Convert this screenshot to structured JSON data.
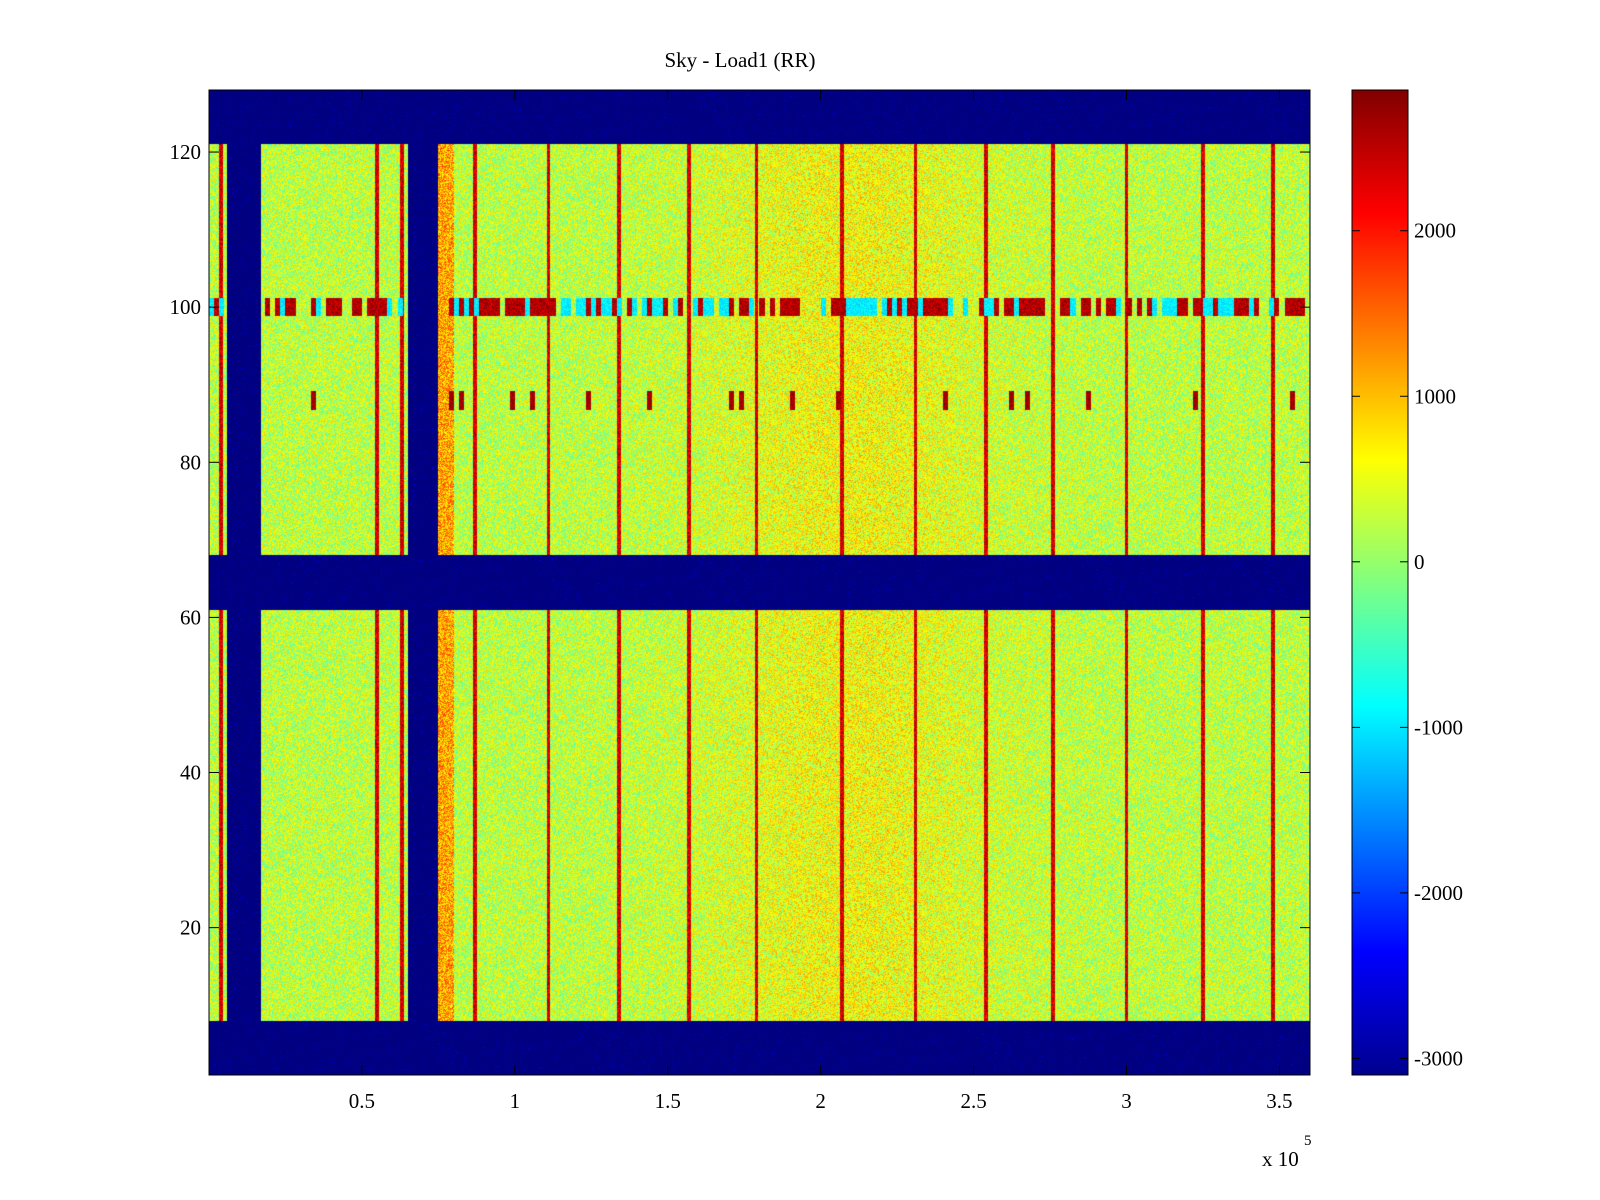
{
  "chart_data": {
    "type": "heatmap",
    "title": "Sky - Load1 (RR)",
    "xlabel": "",
    "ylabel": "",
    "x_multiplier_label": "x 10",
    "x_multiplier_exponent": "5",
    "xlim": [
      0,
      3.6
    ],
    "ylim": [
      1,
      128
    ],
    "xticks": [
      {
        "value": 0.5,
        "label": "0.5"
      },
      {
        "value": 1,
        "label": "1"
      },
      {
        "value": 1.5,
        "label": "1.5"
      },
      {
        "value": 2,
        "label": "2"
      },
      {
        "value": 2.5,
        "label": "2.5"
      },
      {
        "value": 3,
        "label": "3"
      },
      {
        "value": 3.5,
        "label": "3.5"
      }
    ],
    "yticks": [
      {
        "value": 20,
        "label": "20"
      },
      {
        "value": 40,
        "label": "40"
      },
      {
        "value": 60,
        "label": "60"
      },
      {
        "value": 80,
        "label": "80"
      },
      {
        "value": 100,
        "label": "100"
      },
      {
        "value": 120,
        "label": "120"
      }
    ],
    "masked_row_ranges": [
      [
        1,
        8
      ],
      [
        61,
        68
      ],
      [
        121,
        128
      ]
    ],
    "masked_column_ranges": [
      [
        0.06,
        0.17
      ],
      [
        0.65,
        0.75
      ]
    ],
    "hot_columns": [
      0.04,
      0.55,
      0.63,
      0.87,
      1.11,
      1.34,
      1.57,
      1.79,
      2.07,
      2.31,
      2.54,
      2.76,
      3.0,
      3.25,
      3.48
    ],
    "rfi_rows": [
      88,
      100
    ],
    "colorbar": {
      "colormap": "jet",
      "clim": [
        -3100,
        2850
      ],
      "ticks": [
        {
          "value": 2000,
          "label": "2000"
        },
        {
          "value": 1000,
          "label": "1000"
        },
        {
          "value": 0,
          "label": "0"
        },
        {
          "value": -1000,
          "label": "-1000"
        },
        {
          "value": -2000,
          "label": "-2000"
        },
        {
          "value": -3000,
          "label": "-3000"
        }
      ]
    }
  }
}
